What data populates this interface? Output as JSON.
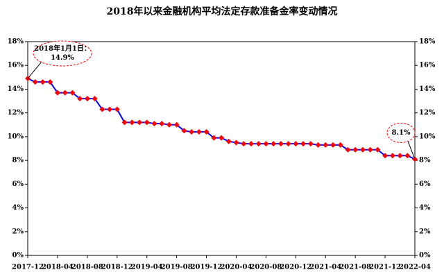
{
  "chart_data": {
    "type": "line",
    "title": "2018年以来金融机构平均法定存款准备金率变动情况",
    "categories": [
      "2017-12",
      null,
      null,
      null,
      "2018-04",
      null,
      null,
      null,
      "2018-08",
      null,
      null,
      null,
      "2018-12",
      null,
      null,
      null,
      "2019-04",
      null,
      null,
      null,
      "2019-08",
      null,
      null,
      null,
      "2019-12",
      null,
      null,
      null,
      "2020-04",
      null,
      null,
      null,
      "2020-08",
      null,
      null,
      null,
      "2020-12",
      null,
      null,
      null,
      "2021-04",
      null,
      null,
      null,
      "2021-08",
      null,
      null,
      null,
      "2021-12",
      null,
      null,
      null,
      "2022-04"
    ],
    "series": [
      {
        "color": "#0000ff",
        "marker_color": "#ff0000",
        "values": [
          14.9,
          14.6,
          14.6,
          14.6,
          13.7,
          13.7,
          13.7,
          13.2,
          13.2,
          13.2,
          12.3,
          12.3,
          12.3,
          11.2,
          11.2,
          11.2,
          11.2,
          11.1,
          11.1,
          11.0,
          11.0,
          10.5,
          10.4,
          10.4,
          10.4,
          9.9,
          9.9,
          9.6,
          9.5,
          9.4,
          9.4,
          9.4,
          9.4,
          9.4,
          9.4,
          9.4,
          9.4,
          9.4,
          9.4,
          9.3,
          9.3,
          9.3,
          9.3,
          8.9,
          8.9,
          8.9,
          8.9,
          8.9,
          8.4,
          8.4,
          8.4,
          8.4,
          8.1
        ]
      }
    ],
    "ylim": [
      0,
      18
    ],
    "yticks": [
      {
        "value": 0,
        "label": "0%"
      },
      {
        "value": 2,
        "label": "2%"
      },
      {
        "value": 4,
        "label": "4%"
      },
      {
        "value": 6,
        "label": "6%"
      },
      {
        "value": 8,
        "label": "8%"
      },
      {
        "value": 10,
        "label": "10%"
      },
      {
        "value": 12,
        "label": "12%"
      },
      {
        "value": 14,
        "label": "14%"
      },
      {
        "value": 16,
        "label": "16%"
      },
      {
        "value": 18,
        "label": "18%"
      }
    ],
    "y2lim": [
      0,
      18
    ],
    "y2ticks": [
      {
        "value": 0,
        "label": "0%"
      },
      {
        "value": 2,
        "label": "2%"
      },
      {
        "value": 4,
        "label": "4%"
      },
      {
        "value": 6,
        "label": "6%"
      },
      {
        "value": 8,
        "label": "8%"
      },
      {
        "value": 10,
        "label": "10%"
      },
      {
        "value": 12,
        "label": "12%"
      },
      {
        "value": 14,
        "label": "14%"
      },
      {
        "value": 16,
        "label": "16%"
      },
      {
        "value": 18,
        "label": "18%"
      }
    ],
    "grid": false,
    "annotations": [
      {
        "point": 0,
        "lines": [
          "2018年1月1日：",
          "14.9%"
        ]
      },
      {
        "point": 52,
        "lines": [
          "8.1%"
        ]
      }
    ]
  }
}
